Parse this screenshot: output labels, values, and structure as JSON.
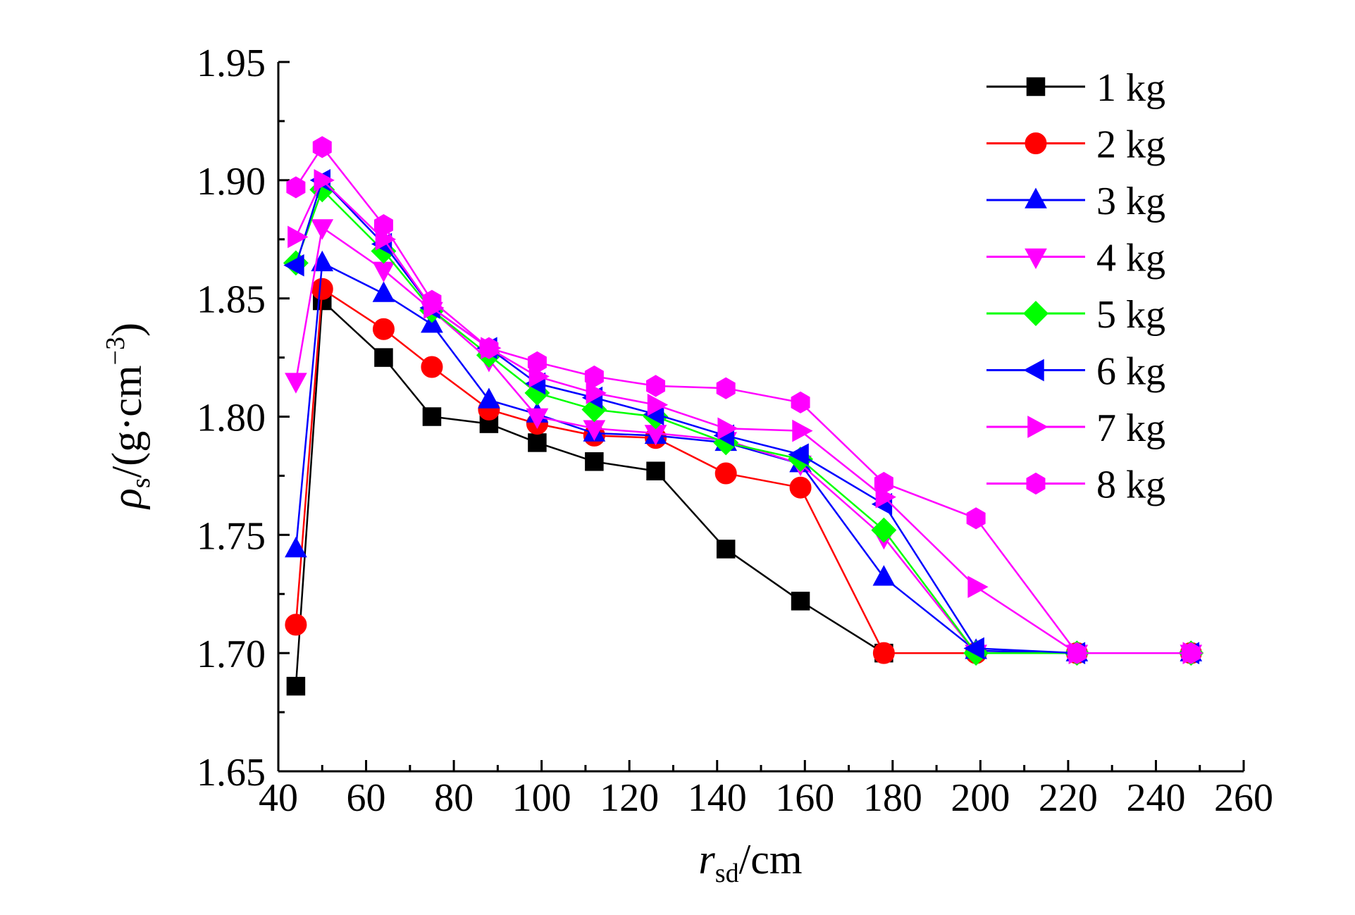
{
  "chart_data": {
    "type": "line",
    "xlim": [
      40,
      260
    ],
    "ylim": [
      1.65,
      1.95
    ],
    "x_ticks": [
      "40",
      "60",
      "80",
      "100",
      "120",
      "140",
      "160",
      "180",
      "200",
      "220",
      "240",
      "260"
    ],
    "y_ticks": [
      "1.65",
      "1.70",
      "1.75",
      "1.80",
      "1.85",
      "1.90",
      "1.95"
    ],
    "xlabel": {
      "sym": "r",
      "sub": "sd",
      "unit": "/cm"
    },
    "ylabel": {
      "sym": "ρ",
      "sub": "s",
      "unit": "/(g·cm",
      "sup": "−3",
      "close": ")"
    },
    "grid": false,
    "legend_position": "top-right",
    "series": [
      {
        "name": "1 kg",
        "color": "#000000",
        "marker": "square",
        "x": [
          44,
          50,
          64,
          75,
          88,
          99,
          112,
          126,
          142,
          159,
          178
        ],
        "y": [
          1.686,
          1.849,
          1.825,
          1.8,
          1.797,
          1.789,
          1.781,
          1.777,
          1.744,
          1.722,
          1.7
        ]
      },
      {
        "name": "2 kg",
        "color": "#ff0000",
        "marker": "circle",
        "x": [
          44,
          50,
          64,
          75,
          88,
          99,
          112,
          126,
          142,
          159,
          178,
          199,
          222,
          248
        ],
        "y": [
          1.712,
          1.854,
          1.837,
          1.821,
          1.803,
          1.797,
          1.792,
          1.791,
          1.776,
          1.77,
          1.7,
          1.7,
          1.7,
          1.7
        ]
      },
      {
        "name": "3 kg",
        "color": "#0000ff",
        "marker": "triangle-up",
        "x": [
          44,
          50,
          64,
          75,
          88,
          99,
          112,
          126,
          142,
          159,
          178,
          199,
          222,
          248
        ],
        "y": [
          1.744,
          1.865,
          1.852,
          1.839,
          1.807,
          1.801,
          1.793,
          1.792,
          1.789,
          1.78,
          1.732,
          1.701,
          1.7,
          1.7
        ]
      },
      {
        "name": "4 kg",
        "color": "#ff00ff",
        "marker": "triangle-down",
        "x": [
          44,
          50,
          64,
          75,
          88,
          99,
          112,
          126,
          142,
          159,
          178,
          199,
          222,
          248
        ],
        "y": [
          1.815,
          1.88,
          1.862,
          1.845,
          1.824,
          1.8,
          1.795,
          1.793,
          1.79,
          1.78,
          1.749,
          1.7,
          1.7,
          1.7
        ]
      },
      {
        "name": "5 kg",
        "color": "#00ff00",
        "marker": "diamond",
        "x": [
          44,
          50,
          64,
          75,
          88,
          99,
          112,
          126,
          142,
          159,
          178,
          199,
          222,
          248
        ],
        "y": [
          1.865,
          1.896,
          1.87,
          1.845,
          1.826,
          1.81,
          1.803,
          1.8,
          1.789,
          1.782,
          1.752,
          1.7,
          1.7,
          1.7
        ]
      },
      {
        "name": "6 kg",
        "color": "#0000ff",
        "marker": "triangle-left",
        "x": [
          44,
          50,
          64,
          75,
          88,
          99,
          112,
          126,
          142,
          159,
          178,
          199,
          222,
          248
        ],
        "y": [
          1.864,
          1.9,
          1.873,
          1.846,
          1.829,
          1.814,
          1.808,
          1.801,
          1.792,
          1.784,
          1.763,
          1.702,
          1.7,
          1.7
        ]
      },
      {
        "name": "7 kg",
        "color": "#ff00ff",
        "marker": "triangle-right",
        "x": [
          44,
          50,
          64,
          75,
          88,
          99,
          112,
          126,
          142,
          159,
          178,
          199,
          222,
          248
        ],
        "y": [
          1.876,
          1.9,
          1.875,
          1.846,
          1.829,
          1.817,
          1.81,
          1.805,
          1.795,
          1.794,
          1.766,
          1.728,
          1.7,
          1.7
        ]
      },
      {
        "name": "8 kg",
        "color": "#ff00ff",
        "marker": "hexagon",
        "x": [
          44,
          50,
          64,
          75,
          88,
          99,
          112,
          126,
          142,
          159,
          178,
          199,
          222,
          248
        ],
        "y": [
          1.897,
          1.914,
          1.881,
          1.849,
          1.829,
          1.823,
          1.817,
          1.813,
          1.812,
          1.806,
          1.772,
          1.757,
          1.7,
          1.7
        ]
      }
    ]
  }
}
